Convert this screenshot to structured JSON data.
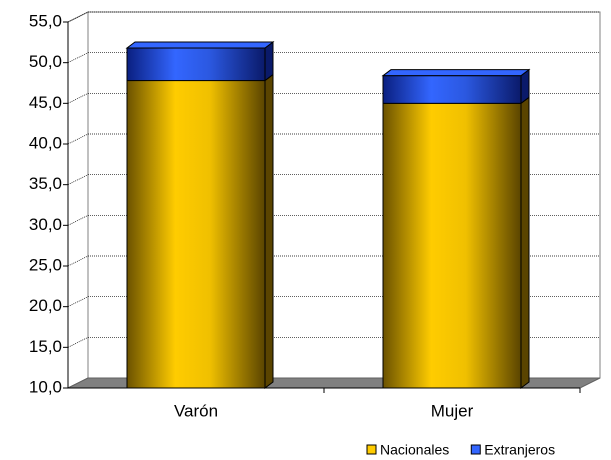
{
  "chart_data": {
    "type": "stacked-bar-3d",
    "categories": [
      "Varón",
      "Mujer"
    ],
    "series": [
      {
        "name": "Nacionales",
        "color": "#ffcc00",
        "values": [
          47.8,
          45.0
        ]
      },
      {
        "name": "Extranjeros",
        "color": "#3366ff",
        "values": [
          4.0,
          3.4
        ]
      }
    ],
    "ylim": [
      10,
      55
    ],
    "yticks": [
      {
        "value": 10,
        "label": "10,0"
      },
      {
        "value": 15,
        "label": "15,0"
      },
      {
        "value": 20,
        "label": "20,0"
      },
      {
        "value": 25,
        "label": "25,0"
      },
      {
        "value": 30,
        "label": "30,0"
      },
      {
        "value": 35,
        "label": "35,0"
      },
      {
        "value": 40,
        "label": "40,0"
      },
      {
        "value": 45,
        "label": "45,0"
      },
      {
        "value": 50,
        "label": "50,0"
      },
      {
        "value": 55,
        "label": "55,0"
      }
    ],
    "grid": true
  }
}
